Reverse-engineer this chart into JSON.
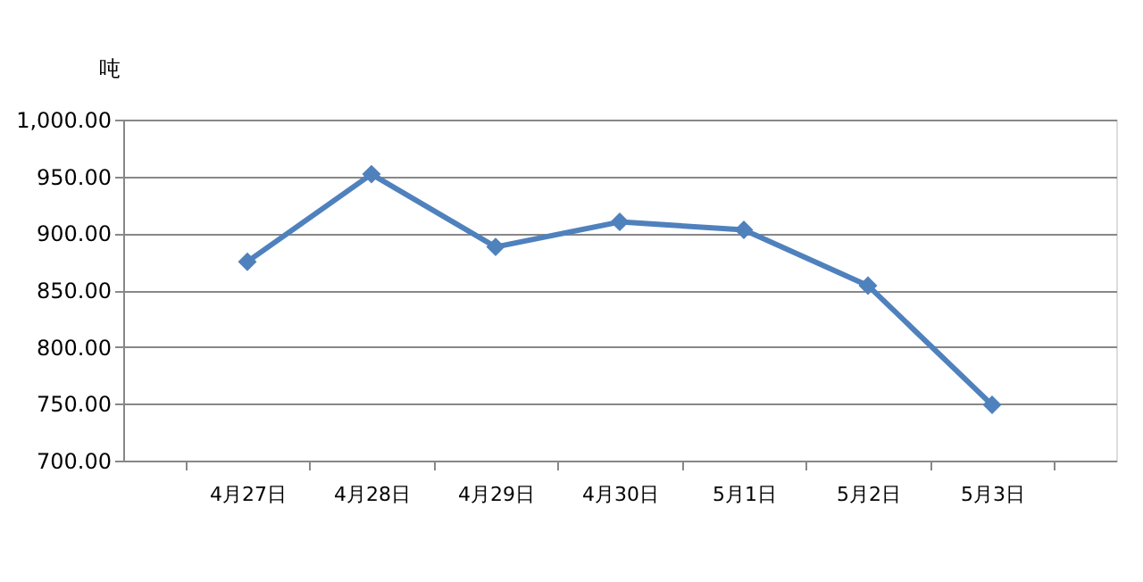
{
  "chart_data": {
    "type": "line",
    "ylabel": "吨",
    "categories": [
      "4月27日",
      "4月28日",
      "4月29日",
      "4月30日",
      "5月1日",
      "5月2日",
      "5月3日"
    ],
    "series": [
      {
        "color": "#4f81bd",
        "values": [
          875,
          952,
          888,
          910,
          903,
          854,
          749
        ]
      }
    ],
    "ylim": [
      700,
      1000
    ],
    "yticks": [
      {
        "value": 700,
        "label": "700.00"
      },
      {
        "value": 750,
        "label": "750.00"
      },
      {
        "value": 800,
        "label": "800.00"
      },
      {
        "value": 850,
        "label": "850.00"
      },
      {
        "value": 900,
        "label": "900.00"
      },
      {
        "value": 950,
        "label": "950.00"
      },
      {
        "value": 1000,
        "label": "1,000.00"
      }
    ],
    "grid": "y",
    "marker": "diamond",
    "line_style": "solid",
    "legend": false
  }
}
